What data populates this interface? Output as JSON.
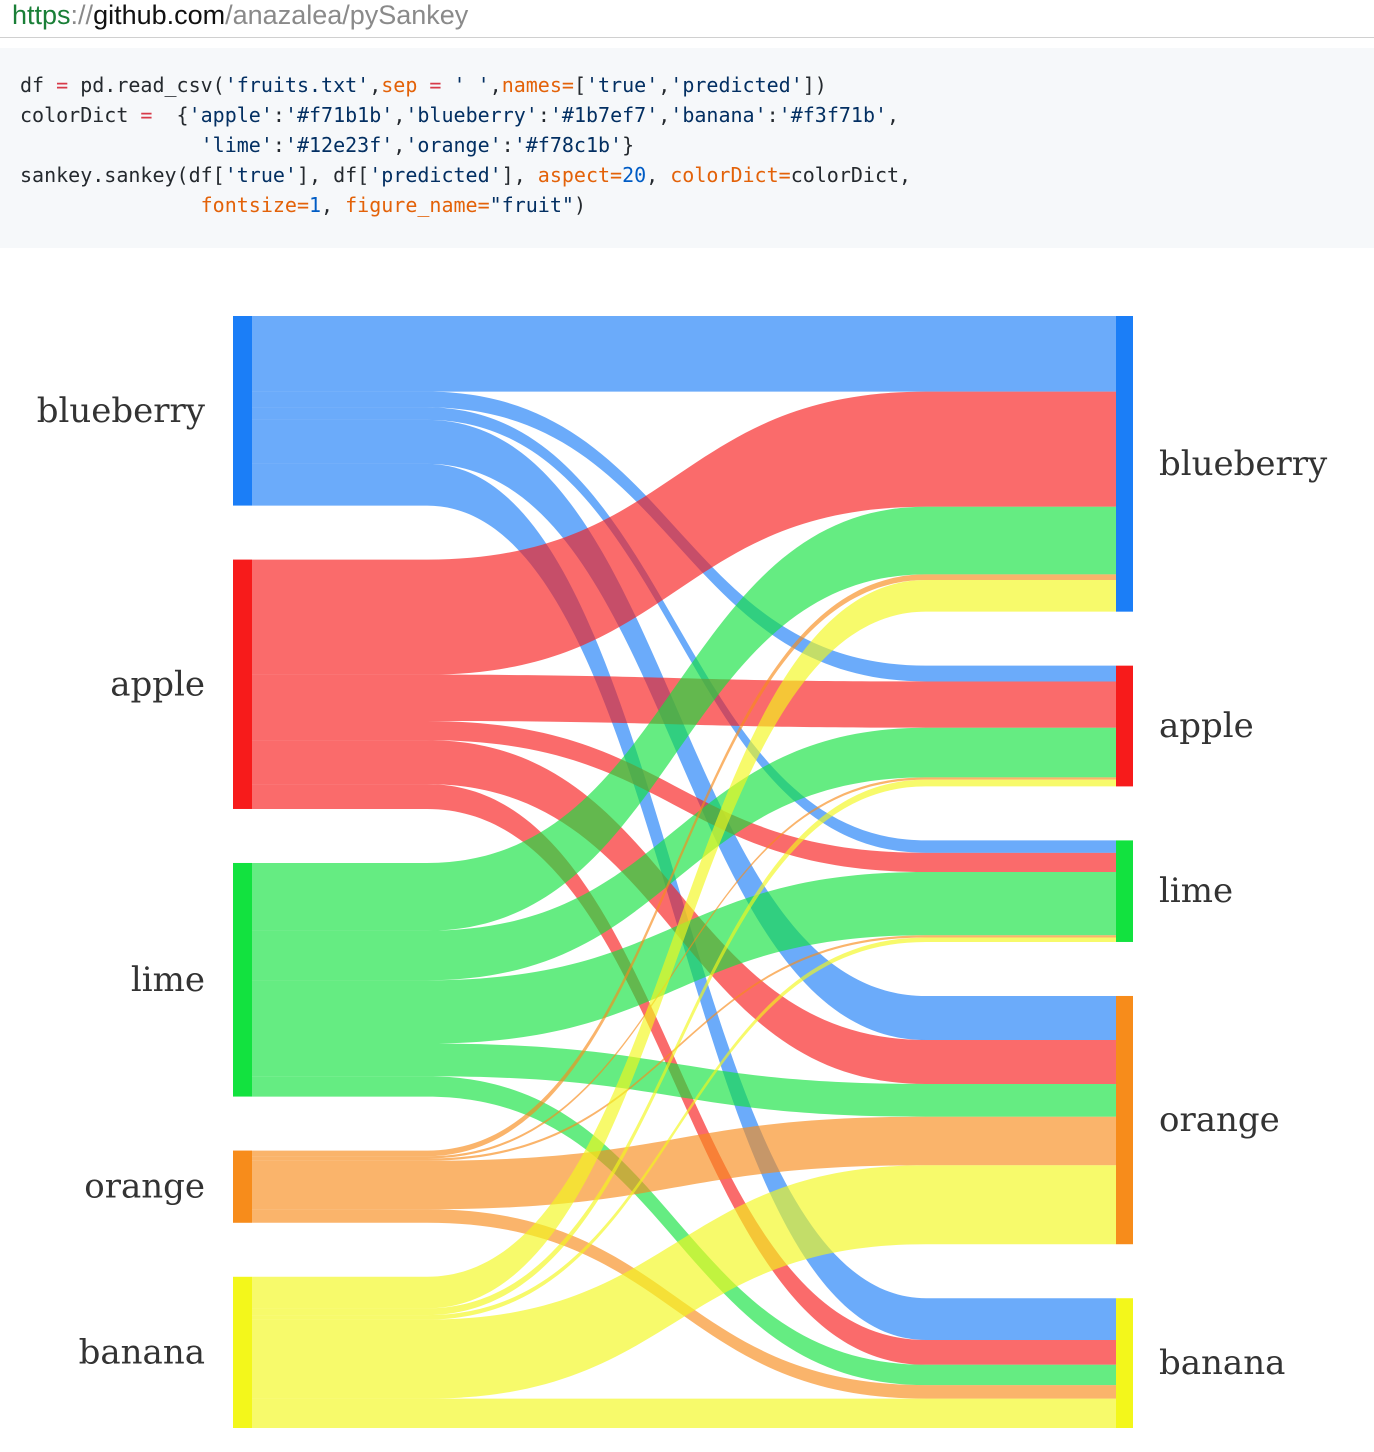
{
  "url": {
    "scheme": "https",
    "separator": "://",
    "host": "github.com",
    "path": "/anazalea/pySankey"
  },
  "code": {
    "lines": [
      [
        {
          "t": "df ",
          "c": "txt"
        },
        {
          "t": "=",
          "c": "op"
        },
        {
          "t": " pd.read_csv(",
          "c": "txt"
        },
        {
          "t": "'fruits.txt'",
          "c": "str"
        },
        {
          "t": ",",
          "c": "txt"
        },
        {
          "t": "sep",
          "c": "kw"
        },
        {
          "t": " = ",
          "c": "op"
        },
        {
          "t": "' '",
          "c": "str"
        },
        {
          "t": ",",
          "c": "txt"
        },
        {
          "t": "names=",
          "c": "kw"
        },
        {
          "t": "[",
          "c": "txt"
        },
        {
          "t": "'true'",
          "c": "str"
        },
        {
          "t": ",",
          "c": "txt"
        },
        {
          "t": "'predicted'",
          "c": "str"
        },
        {
          "t": "])",
          "c": "txt"
        }
      ],
      [
        {
          "t": "colorDict ",
          "c": "txt"
        },
        {
          "t": "=",
          "c": "op"
        },
        {
          "t": "  {",
          "c": "txt"
        },
        {
          "t": "'apple'",
          "c": "str"
        },
        {
          "t": ":",
          "c": "txt"
        },
        {
          "t": "'#f71b1b'",
          "c": "str"
        },
        {
          "t": ",",
          "c": "txt"
        },
        {
          "t": "'blueberry'",
          "c": "str"
        },
        {
          "t": ":",
          "c": "txt"
        },
        {
          "t": "'#1b7ef7'",
          "c": "str"
        },
        {
          "t": ",",
          "c": "txt"
        },
        {
          "t": "'banana'",
          "c": "str"
        },
        {
          "t": ":",
          "c": "txt"
        },
        {
          "t": "'#f3f71b'",
          "c": "str"
        },
        {
          "t": ",",
          "c": "txt"
        }
      ],
      [
        {
          "t": "               ",
          "c": "txt"
        },
        {
          "t": "'lime'",
          "c": "str"
        },
        {
          "t": ":",
          "c": "txt"
        },
        {
          "t": "'#12e23f'",
          "c": "str"
        },
        {
          "t": ",",
          "c": "txt"
        },
        {
          "t": "'orange'",
          "c": "str"
        },
        {
          "t": ":",
          "c": "txt"
        },
        {
          "t": "'#f78c1b'",
          "c": "str"
        },
        {
          "t": "}",
          "c": "txt"
        }
      ],
      [
        {
          "t": "sankey.sankey(df[",
          "c": "txt"
        },
        {
          "t": "'true'",
          "c": "str"
        },
        {
          "t": "], df[",
          "c": "txt"
        },
        {
          "t": "'predicted'",
          "c": "str"
        },
        {
          "t": "], ",
          "c": "txt"
        },
        {
          "t": "aspect=",
          "c": "kw"
        },
        {
          "t": "20",
          "c": "num"
        },
        {
          "t": ", ",
          "c": "txt"
        },
        {
          "t": "colorDict=",
          "c": "kw"
        },
        {
          "t": "colorDict,",
          "c": "txt"
        }
      ],
      [
        {
          "t": "               ",
          "c": "txt"
        },
        {
          "t": "fontsize=",
          "c": "kw"
        },
        {
          "t": "1",
          "c": "num"
        },
        {
          "t": ", ",
          "c": "txt"
        },
        {
          "t": "figure_name=",
          "c": "kw"
        },
        {
          "t": "\"fruit\"",
          "c": "str"
        },
        {
          "t": ")",
          "c": "txt"
        }
      ]
    ]
  },
  "sankey": {
    "order": [
      "blueberry",
      "apple",
      "lime",
      "orange",
      "banana"
    ],
    "colors": {
      "apple": "#f71b1b",
      "blueberry": "#1b7ef7",
      "banana": "#f3f71b",
      "lime": "#12e23f",
      "orange": "#f78c1b"
    },
    "left_labels": [
      "blueberry",
      "apple",
      "lime",
      "orange",
      "banana"
    ],
    "right_labels": [
      "blueberry",
      "apple",
      "lime",
      "orange",
      "banana"
    ],
    "flows": [
      {
        "from": "blueberry",
        "to": "blueberry",
        "value": 67
      },
      {
        "from": "blueberry",
        "to": "apple",
        "value": 14
      },
      {
        "from": "blueberry",
        "to": "lime",
        "value": 11
      },
      {
        "from": "blueberry",
        "to": "orange",
        "value": 39
      },
      {
        "from": "blueberry",
        "to": "banana",
        "value": 37
      },
      {
        "from": "apple",
        "to": "blueberry",
        "value": 102
      },
      {
        "from": "apple",
        "to": "apple",
        "value": 41
      },
      {
        "from": "apple",
        "to": "lime",
        "value": 17
      },
      {
        "from": "apple",
        "to": "orange",
        "value": 39
      },
      {
        "from": "apple",
        "to": "banana",
        "value": 22
      },
      {
        "from": "lime",
        "to": "blueberry",
        "value": 60
      },
      {
        "from": "lime",
        "to": "apple",
        "value": 44
      },
      {
        "from": "lime",
        "to": "lime",
        "value": 56
      },
      {
        "from": "lime",
        "to": "orange",
        "value": 29
      },
      {
        "from": "lime",
        "to": "banana",
        "value": 18
      },
      {
        "from": "orange",
        "to": "blueberry",
        "value": 5
      },
      {
        "from": "orange",
        "to": "apple",
        "value": 2
      },
      {
        "from": "orange",
        "to": "lime",
        "value": 2
      },
      {
        "from": "orange",
        "to": "orange",
        "value": 43
      },
      {
        "from": "orange",
        "to": "banana",
        "value": 12
      },
      {
        "from": "banana",
        "to": "blueberry",
        "value": 28
      },
      {
        "from": "banana",
        "to": "apple",
        "value": 6
      },
      {
        "from": "banana",
        "to": "lime",
        "value": 4
      },
      {
        "from": "banana",
        "to": "orange",
        "value": 70
      },
      {
        "from": "banana",
        "to": "banana",
        "value": 26
      }
    ]
  }
}
